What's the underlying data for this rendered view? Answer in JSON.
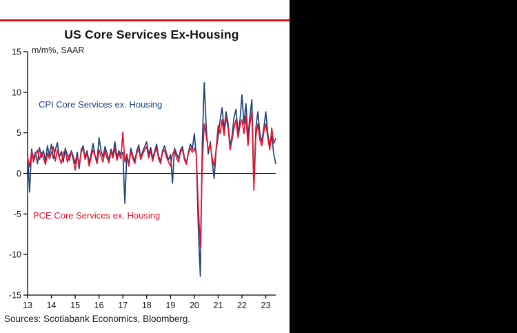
{
  "header": {
    "title": "US Core Services Ex-Housing"
  },
  "footer": {
    "sources": "Sources: Scotiabank Economics, Bloomberg."
  },
  "colors": {
    "accent_bar": "#EC111A",
    "cpi_line": "#1e4178",
    "pce_line": "#e8112d",
    "axis": "#000000",
    "background_panel": "#ffffff",
    "background_outer": "#000000"
  },
  "chart_data": {
    "type": "line",
    "title": "US Core Services Ex-Housing",
    "unit_label": "m/m%, SAAR",
    "ylim": [
      -15,
      15
    ],
    "y_ticks": [
      15,
      10,
      5,
      0,
      -5,
      -10,
      -15
    ],
    "x_ticks": [
      "13",
      "14",
      "15",
      "16",
      "17",
      "18",
      "19",
      "20",
      "21",
      "22",
      "23"
    ],
    "x_start": "2013-01",
    "x_end": "2023-06",
    "grid": false,
    "legend_position": "inline-annotations",
    "series": [
      {
        "name": "cpi-core-services-ex-housing",
        "label": "CPI Core Services ex. Housing",
        "color": "#1e4178",
        "values": [
          2.5,
          -2.3,
          3.0,
          1.8,
          2.6,
          1.2,
          3.2,
          2.0,
          2.8,
          1.5,
          3.4,
          2.2,
          3.6,
          1.8,
          2.9,
          3.8,
          2.0,
          2.7,
          1.4,
          3.1,
          2.3,
          1.6,
          2.8,
          2.1,
          1.2,
          2.6,
          0.6,
          2.9,
          3.4,
          2.0,
          2.8,
          1.3,
          2.4,
          3.7,
          2.2,
          1.5,
          4.4,
          2.8,
          2.0,
          3.3,
          2.5,
          1.7,
          3.0,
          2.2,
          3.9,
          2.0,
          2.8,
          2.3,
          2.6,
          -3.7,
          2.4,
          1.1,
          3.1,
          2.2,
          1.5,
          2.8,
          3.5,
          1.9,
          2.7,
          3.3,
          3.9,
          2.3,
          3.2,
          1.9,
          2.7,
          3.6,
          2.1,
          1.5,
          2.8,
          3.4,
          2.4,
          1.7,
          2.3,
          -1.2,
          3.1,
          2.5,
          1.8,
          2.9,
          3.3,
          2.0,
          1.3,
          2.6,
          3.6,
          3.0,
          4.9,
          2.1,
          -6.8,
          -12.7,
          3.6,
          11.2,
          5.6,
          2.4,
          3.9,
          1.4,
          -0.6,
          2.9,
          4.6,
          6.6,
          8.1,
          5.4,
          7.6,
          6.1,
          3.4,
          4.6,
          6.9,
          7.9,
          4.9,
          6.6,
          9.7,
          6.1,
          8.6,
          4.4,
          7.1,
          9.1,
          -1.2,
          5.6,
          7.6,
          4.9,
          3.9,
          5.6,
          7.6,
          4.9,
          3.4,
          4.6,
          2.4,
          1.2
        ]
      },
      {
        "name": "pce-core-services-ex-housing",
        "label": "PCE Core Services ex. Housing",
        "color": "#e8112d",
        "values": [
          2.0,
          0.8,
          2.7,
          1.4,
          2.3,
          2.9,
          1.7,
          2.6,
          1.9,
          1.1,
          2.5,
          1.8,
          2.5,
          3.3,
          1.5,
          2.9,
          1.9,
          1.2,
          2.6,
          2.8,
          1.4,
          2.3,
          2.6,
          1.7,
          0.4,
          2.1,
          1.1,
          2.6,
          3.1,
          1.7,
          2.5,
          0.9,
          2.0,
          2.9,
          2.1,
          1.2,
          2.9,
          2.1,
          1.4,
          2.8,
          1.9,
          1.3,
          2.7,
          1.9,
          3.1,
          1.6,
          2.5,
          1.8,
          5.1,
          1.4,
          2.3,
          0.9,
          2.7,
          1.9,
          1.2,
          2.5,
          3.0,
          1.7,
          2.4,
          2.9,
          3.3,
          1.9,
          2.8,
          1.5,
          2.5,
          3.1,
          1.8,
          1.2,
          2.6,
          2.9,
          2.0,
          1.4,
          0.9,
          2.3,
          2.9,
          1.9,
          1.4,
          2.6,
          3.0,
          1.7,
          1.1,
          2.5,
          3.1,
          2.6,
          3.1,
          2.3,
          -4.2,
          -9.1,
          1.1,
          6.1,
          4.6,
          2.9,
          3.6,
          1.9,
          0.9,
          3.1,
          5.9,
          4.9,
          6.6,
          4.7,
          6.9,
          5.6,
          2.9,
          4.1,
          5.6,
          6.6,
          4.4,
          5.9,
          6.6,
          4.9,
          7.1,
          3.4,
          6.1,
          7.6,
          -2.1,
          4.6,
          6.1,
          4.1,
          3.4,
          5.1,
          6.1,
          4.4,
          2.9,
          5.6,
          3.7,
          4.3
        ]
      }
    ]
  }
}
